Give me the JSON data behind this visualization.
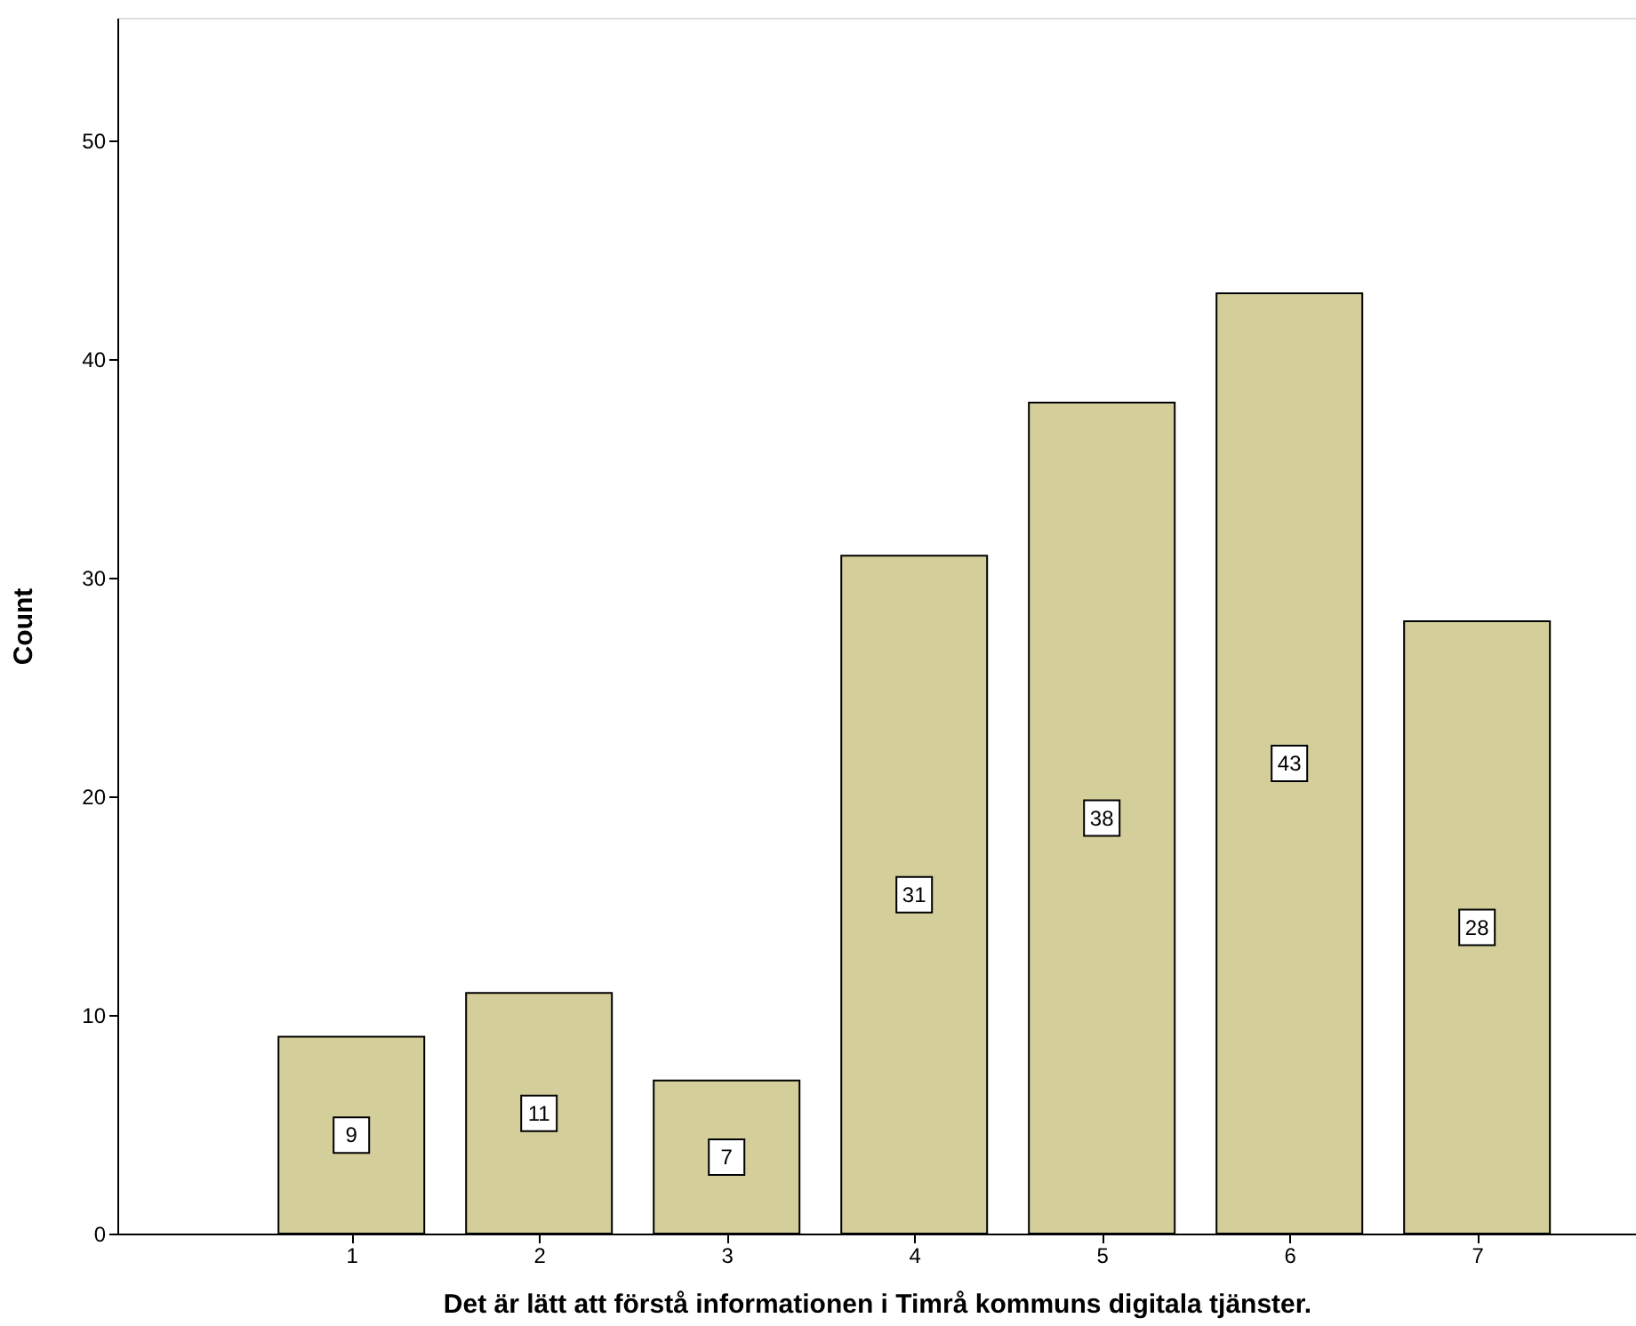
{
  "chart_data": {
    "type": "bar",
    "xlabel": "Det är lätt att förstå informationen i Timrå kommuns digitala tjänster.",
    "ylabel": "Count",
    "categories": [
      "1",
      "2",
      "3",
      "4",
      "5",
      "6",
      "7"
    ],
    "values": [
      9,
      11,
      7,
      31,
      38,
      43,
      28
    ],
    "color": "#d3ce9a",
    "ylim": [
      0,
      55.6
    ],
    "yticks": [
      0,
      10,
      20,
      30,
      40,
      50
    ],
    "grid": false,
    "data_labels": true
  }
}
